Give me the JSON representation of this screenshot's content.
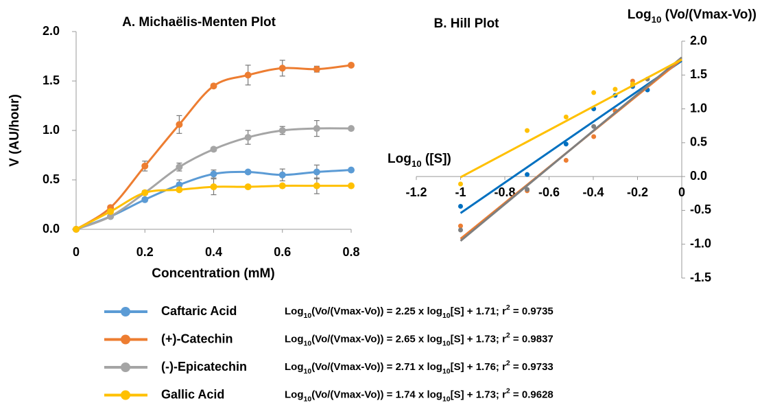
{
  "chart_data": [
    {
      "type": "line",
      "title": "A. Michaëlis-Menten Plot",
      "x_label": "Concentration (mM)",
      "y_label": "V (AU/hour)",
      "xlim": [
        0,
        0.8
      ],
      "xticks": [
        0,
        0.2,
        0.4,
        0.6,
        0.8
      ],
      "ylim": [
        0,
        2
      ],
      "yticks": [
        {
          "value": 0,
          "label": "0.0"
        },
        {
          "value": 0.5,
          "label": "0.5"
        },
        {
          "value": 1,
          "label": "1.0"
        },
        {
          "value": 1.5,
          "label": "1.5"
        },
        {
          "value": 2,
          "label": "2.0"
        }
      ],
      "x": [
        0,
        0.1,
        0.2,
        0.3,
        0.4,
        0.5,
        0.6,
        0.7,
        0.8
      ],
      "series": [
        {
          "name": "Caftaric Acid",
          "color": "#5b9bd5",
          "values": [
            0,
            0.13,
            0.3,
            0.45,
            0.56,
            0.58,
            0.55,
            0.58,
            0.6
          ],
          "errors": [
            null,
            null,
            0.02,
            0.05,
            0.04,
            null,
            0.06,
            0.07,
            null
          ]
        },
        {
          "name": "(+)-Catechin",
          "color": "#ed7d31",
          "values": [
            0,
            0.22,
            0.64,
            1.06,
            1.45,
            1.56,
            1.63,
            1.62,
            1.66
          ],
          "errors": [
            null,
            0.02,
            0.05,
            0.09,
            0.02,
            0.1,
            0.08,
            0.03,
            null
          ]
        },
        {
          "name": "(-)-Epicatechin",
          "color": "#a5a5a5",
          "values": [
            0,
            0.13,
            0.37,
            0.63,
            0.81,
            0.93,
            1.0,
            1.02,
            1.02
          ],
          "errors": [
            null,
            null,
            null,
            0.04,
            0.02,
            0.07,
            0.04,
            0.08,
            null
          ]
        },
        {
          "name": "Gallic Acid",
          "color": "#ffc000",
          "values": [
            0,
            0.18,
            0.37,
            0.4,
            0.43,
            0.43,
            0.44,
            0.44,
            0.44
          ],
          "errors": [
            null,
            null,
            0.02,
            null,
            0.08,
            null,
            null,
            0.08,
            null
          ]
        }
      ]
    },
    {
      "type": "scatter",
      "title": "B. Hill Plot",
      "x_label": [
        "Log",
        "10",
        " ([S])"
      ],
      "y_label": [
        "Log",
        "10",
        " (Vo/(Vmax-Vo))"
      ],
      "xlim": [
        -1.2,
        0
      ],
      "xticks": [
        -1.2,
        -1,
        -0.8,
        -0.6,
        -0.4,
        -0.2,
        0
      ],
      "ylim": [
        -1.5,
        2
      ],
      "yticks": [
        {
          "value": -1.5,
          "label": "-1.5"
        },
        {
          "value": -1,
          "label": "-1.0"
        },
        {
          "value": -0.5,
          "label": "-0.5"
        },
        {
          "value": 0,
          "label": "0.0"
        },
        {
          "value": 0.5,
          "label": "0.5"
        },
        {
          "value": 1,
          "label": "1.0"
        },
        {
          "value": 1.5,
          "label": "1.5"
        },
        {
          "value": 2,
          "label": "2.0"
        }
      ],
      "fit_label": [
        "Log",
        "10",
        "(Vo/(Vmax-Vo)) = ",
        " x log",
        "10",
        "[S] + ",
        "; r",
        "2",
        " = "
      ],
      "series": [
        {
          "color": "#0070c0",
          "x": [
            -1,
            -0.699,
            -0.523,
            -0.398,
            -0.301,
            -0.222,
            -0.155
          ],
          "values": [
            -0.44,
            0.03,
            0.48,
            1.0,
            1.2,
            1.33,
            1.28
          ],
          "fit": {
            "slope": 2.25,
            "intercept": 1.71,
            "r2": 0.9735
          }
        },
        {
          "color": "#ed7d31",
          "x": [
            -1,
            -0.699,
            -0.523,
            -0.398,
            -0.301,
            -0.222
          ],
          "values": [
            -0.73,
            -0.21,
            0.24,
            0.59,
            0.97,
            1.41
          ],
          "fit": {
            "slope": 2.65,
            "intercept": 1.73,
            "r2": 0.9837
          }
        },
        {
          "color": "#7f7f7f",
          "x": [
            -1,
            -0.699,
            -0.398,
            -0.222,
            -0.155
          ],
          "values": [
            -0.79,
            -0.19,
            0.74,
            1.35,
            1.44
          ],
          "fit": {
            "slope": 2.71,
            "intercept": 1.76,
            "r2": 0.9733
          }
        },
        {
          "color": "#ffc000",
          "x": [
            -1,
            -0.699,
            -0.523,
            -0.398,
            -0.301,
            -0.222
          ],
          "values": [
            -0.11,
            0.68,
            0.88,
            1.24,
            1.29,
            1.37
          ],
          "fit": {
            "slope": 1.74,
            "intercept": 1.73,
            "r2": 0.9628
          }
        }
      ]
    }
  ]
}
